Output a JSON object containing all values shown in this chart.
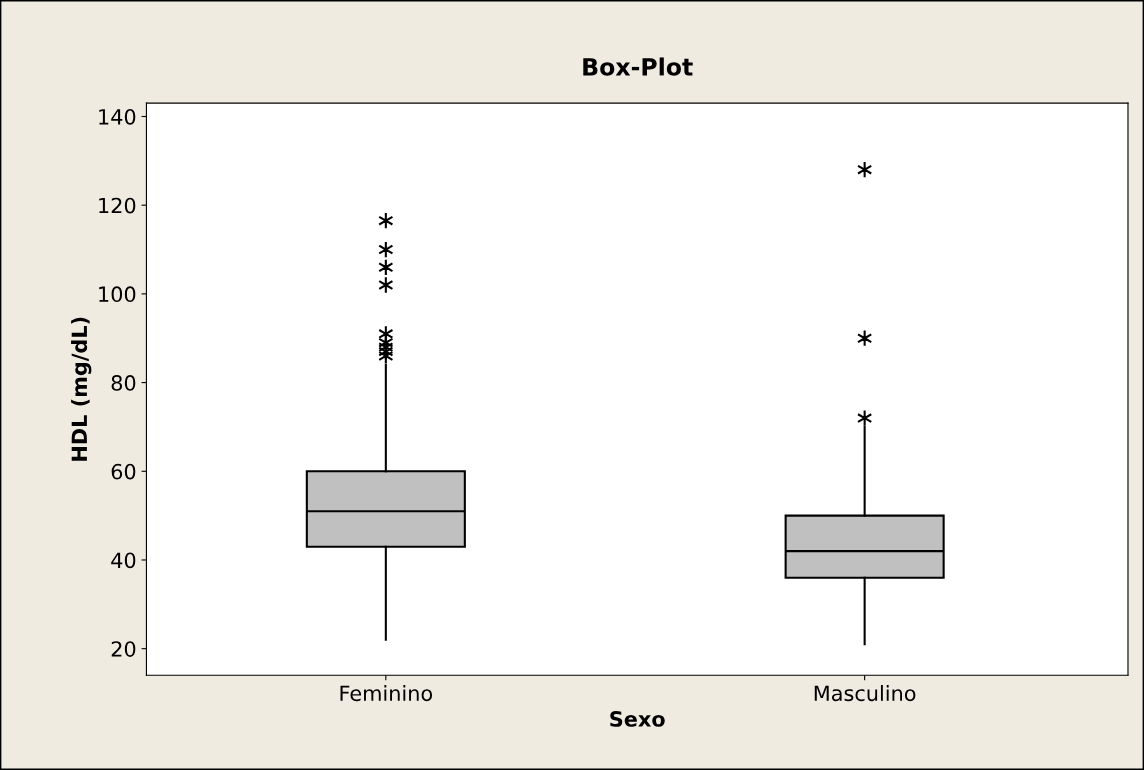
{
  "chart_data": {
    "type": "box",
    "title": "Box-Plot",
    "xlabel": "Sexo",
    "ylabel": "HDL (mg/dL)",
    "categories": [
      "Feminino",
      "Masculino"
    ],
    "boxes": [
      {
        "low": 22,
        "q1": 43,
        "median": 51,
        "q3": 60,
        "high": 84,
        "outliers": [
          86,
          87,
          88,
          89,
          91,
          102,
          106,
          110,
          116.5
        ]
      },
      {
        "low": 21,
        "q1": 36,
        "median": 42,
        "q3": 50,
        "high": 70,
        "outliers": [
          72,
          90,
          128
        ]
      }
    ],
    "color": "#c0c0c0",
    "ylim": [
      14,
      143
    ],
    "yticks": [
      20,
      40,
      60,
      80,
      100,
      120,
      140
    ],
    "grid": false,
    "legend": false
  }
}
